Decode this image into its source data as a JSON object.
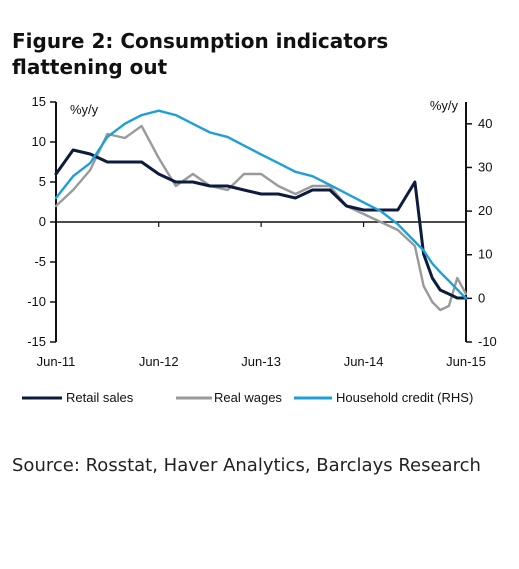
{
  "figure_title": "Figure 2: Consumption indicators flattening out",
  "source": "Source: Rosstat, Haver Analytics, Barclays Research",
  "colors": {
    "retail": "#0d1b3d",
    "wages": "#9a9a9a",
    "credit": "#1f9fd9"
  },
  "chart_data": {
    "type": "line",
    "y_left_label": "%y/y",
    "y_right_label": "%y/y",
    "ylim_left": [
      -15,
      15
    ],
    "ylim_right": [
      -10,
      45
    ],
    "y_left_ticks": [
      "15",
      "10",
      "5",
      "0",
      "-5",
      "-10",
      "-15"
    ],
    "y_right_ticks": [
      "40",
      "30",
      "20",
      "10",
      "0",
      "-10"
    ],
    "x_ticks": [
      "Jun-11",
      "Jun-12",
      "Jun-13",
      "Jun-14",
      "Jun-15"
    ],
    "grid": false,
    "legend_position": "bottom",
    "series": [
      {
        "name": "Retail sales",
        "axis": "left",
        "x": [
          "2011-06",
          "2011-08",
          "2011-10",
          "2011-12",
          "2012-02",
          "2012-04",
          "2012-06",
          "2012-08",
          "2012-10",
          "2012-12",
          "2013-02",
          "2013-04",
          "2013-06",
          "2013-08",
          "2013-10",
          "2013-12",
          "2014-02",
          "2014-04",
          "2014-06",
          "2014-08",
          "2014-10",
          "2014-12",
          "2015-01",
          "2015-02",
          "2015-03",
          "2015-04",
          "2015-05",
          "2015-06"
        ],
        "values": [
          6,
          9,
          8.5,
          7.5,
          7.5,
          7.5,
          6,
          5,
          5,
          4.5,
          4.5,
          4,
          3.5,
          3.5,
          3,
          4,
          4,
          2,
          1.5,
          1.5,
          1.5,
          5,
          -4,
          -7,
          -8.5,
          -9,
          -9.5,
          -9.5
        ]
      },
      {
        "name": "Real wages",
        "axis": "left",
        "x": [
          "2011-06",
          "2011-08",
          "2011-10",
          "2011-12",
          "2012-02",
          "2012-04",
          "2012-06",
          "2012-08",
          "2012-10",
          "2012-12",
          "2013-02",
          "2013-04",
          "2013-06",
          "2013-08",
          "2013-10",
          "2013-12",
          "2014-02",
          "2014-04",
          "2014-06",
          "2014-08",
          "2014-10",
          "2014-12",
          "2015-01",
          "2015-02",
          "2015-03",
          "2015-04",
          "2015-05",
          "2015-06"
        ],
        "values": [
          2,
          4,
          6.5,
          11,
          10.5,
          12,
          8,
          4.5,
          6,
          4.5,
          4,
          6,
          6,
          4.5,
          3.5,
          4.5,
          4.5,
          2,
          1,
          0,
          -1,
          -3,
          -8,
          -10,
          -11,
          -10.5,
          -7,
          -9
        ]
      },
      {
        "name": "Household credit (RHS)",
        "axis": "right",
        "x": [
          "2011-06",
          "2011-08",
          "2011-10",
          "2011-12",
          "2012-02",
          "2012-04",
          "2012-06",
          "2012-08",
          "2012-10",
          "2012-12",
          "2013-02",
          "2013-04",
          "2013-06",
          "2013-08",
          "2013-10",
          "2013-12",
          "2014-02",
          "2014-04",
          "2014-06",
          "2014-08",
          "2014-10",
          "2014-12",
          "2015-01",
          "2015-02",
          "2015-03",
          "2015-04",
          "2015-05",
          "2015-06"
        ],
        "values": [
          23,
          28,
          31,
          37,
          40,
          42,
          43,
          42,
          40,
          38,
          37,
          35,
          33,
          31,
          29,
          28,
          26,
          24,
          22,
          20,
          17,
          13,
          11,
          8,
          6,
          4,
          2,
          0
        ]
      }
    ]
  }
}
